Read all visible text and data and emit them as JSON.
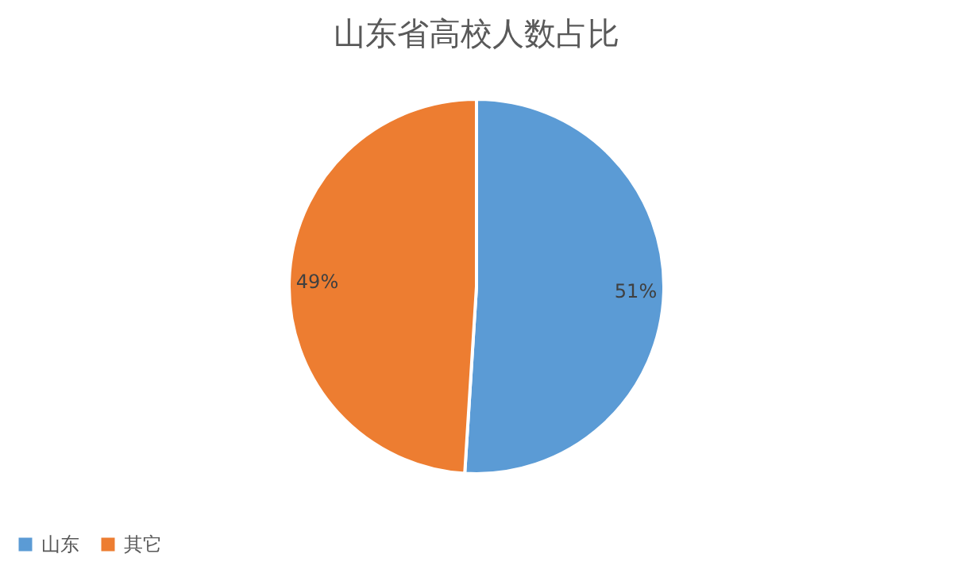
{
  "chart_data": {
    "type": "pie",
    "title": "山东省高校人数占比",
    "categories": [
      "山东",
      "其它"
    ],
    "values": [
      51,
      49
    ],
    "colors": [
      "#5b9bd5",
      "#ed7d31"
    ],
    "value_labels": [
      "51%",
      "49%"
    ],
    "legend": "bottom"
  }
}
